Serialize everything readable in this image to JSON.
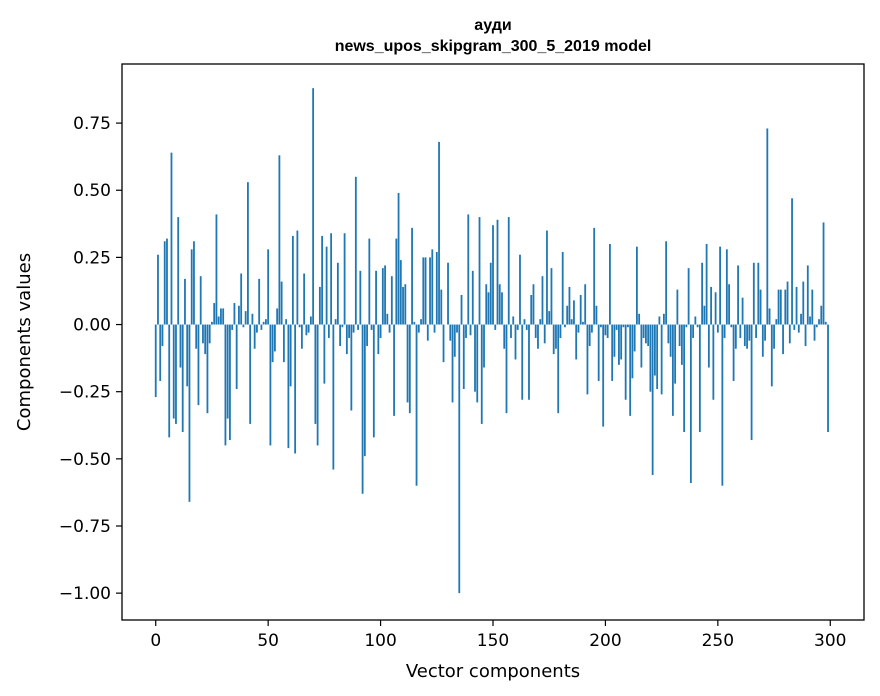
{
  "chart_data": {
    "type": "bar",
    "title": "ауди",
    "subtitle": "news_upos_skipgram_300_5_2019 model",
    "xlabel": "Vector components",
    "ylabel": "Components values",
    "xlim": [
      -15,
      315
    ],
    "ylim": [
      -1.1,
      0.97
    ],
    "xticks": [
      0,
      50,
      100,
      150,
      200,
      250,
      300
    ],
    "xtick_labels": [
      "0",
      "50",
      "100",
      "150",
      "200",
      "250",
      "300"
    ],
    "yticks": [
      -1.0,
      -0.75,
      -0.5,
      -0.25,
      0.0,
      0.25,
      0.5,
      0.75
    ],
    "ytick_labels": [
      "−1.00",
      "−0.75",
      "−0.50",
      "−0.25",
      "0.00",
      "0.25",
      "0.50",
      "0.75"
    ],
    "grid": false,
    "color": "#1f77b4",
    "x_start": 0,
    "values": [
      -0.27,
      0.26,
      -0.21,
      -0.08,
      0.31,
      0.32,
      -0.42,
      0.64,
      -0.35,
      -0.37,
      0.4,
      -0.16,
      -0.4,
      0.17,
      -0.23,
      -0.66,
      0.28,
      0.31,
      -0.09,
      -0.3,
      0.18,
      -0.07,
      -0.11,
      -0.33,
      -0.07,
      0.01,
      0.08,
      0.41,
      0.03,
      0.06,
      0.06,
      -0.45,
      -0.35,
      -0.43,
      -0.02,
      0.08,
      -0.24,
      0.07,
      0.19,
      -0.01,
      0.05,
      0.53,
      -0.37,
      0.04,
      -0.09,
      -0.03,
      0.17,
      -0.02,
      0.01,
      0.02,
      0.28,
      -0.45,
      -0.14,
      -0.1,
      0.06,
      0.63,
      0.16,
      -0.14,
      0.02,
      -0.46,
      -0.23,
      0.33,
      -0.48,
      0.35,
      -0.01,
      -0.09,
      0.19,
      -0.04,
      -0.03,
      0.03,
      0.88,
      -0.37,
      -0.45,
      0.14,
      0.33,
      -0.22,
      0.29,
      -0.05,
      0.34,
      -0.54,
      0.02,
      0.23,
      -0.08,
      -0.01,
      0.34,
      -0.11,
      -0.05,
      -0.32,
      -0.03,
      0.55,
      -0.02,
      0.2,
      -0.63,
      -0.49,
      -0.08,
      0.32,
      -0.02,
      -0.42,
      0.2,
      -0.11,
      -0.05,
      0.21,
      0.22,
      0.04,
      -0.03,
      0.18,
      -0.34,
      0.32,
      0.49,
      0.24,
      0.14,
      0.15,
      -0.29,
      -0.33,
      0.36,
      0.01,
      -0.6,
      -0.03,
      0.02,
      0.25,
      0.25,
      -0.06,
      0.25,
      0.28,
      -0.03,
      0.27,
      0.68,
      0.13,
      -0.14,
      0.0,
      0.23,
      -0.06,
      -0.29,
      -0.12,
      -0.03,
      -1.0,
      0.11,
      -0.24,
      -0.05,
      0.41,
      -0.04,
      0.2,
      -0.25,
      -0.29,
      0.4,
      -0.37,
      -0.16,
      0.15,
      0.12,
      0.23,
      0.37,
      -0.02,
      0.39,
      0.15,
      0.12,
      -0.09,
      -0.33,
      0.4,
      -0.05,
      0.03,
      -0.13,
      -0.02,
      0.26,
      -0.28,
      0.02,
      -0.02,
      -0.28,
      0.11,
      0.15,
      -0.05,
      -0.09,
      0.02,
      0.18,
      -0.07,
      0.35,
      0.05,
      0.21,
      -0.11,
      -0.09,
      -0.33,
      -0.05,
      0.27,
      -0.01,
      0.07,
      0.14,
      0.02,
      0.09,
      -0.13,
      -0.03,
      0.11,
      0.01,
      0.15,
      -0.26,
      -0.08,
      -0.03,
      0.36,
      0.07,
      -0.21,
      -0.01,
      -0.38,
      -0.04,
      -0.05,
      0.3,
      -0.21,
      -0.12,
      -0.02,
      -0.15,
      -0.13,
      -0.01,
      -0.28,
      -0.01,
      -0.34,
      -0.2,
      -0.1,
      0.29,
      0.04,
      -0.16,
      -0.05,
      -0.07,
      -0.08,
      -0.25,
      -0.56,
      -0.19,
      -0.24,
      0.03,
      -0.26,
      0.04,
      0.31,
      -0.07,
      -0.12,
      -0.34,
      -0.22,
      0.13,
      -0.08,
      -0.15,
      -0.4,
      -0.01,
      0.21,
      -0.59,
      -0.05,
      0.03,
      -0.01,
      -0.4,
      0.23,
      0.07,
      0.3,
      -0.16,
      0.14,
      -0.28,
      0.12,
      -0.03,
      0.29,
      -0.6,
      -0.05,
      0.28,
      0.15,
      -0.01,
      -0.21,
      -0.09,
      0.22,
      -0.05,
      0.1,
      -0.08,
      -0.09,
      -0.06,
      -0.43,
      0.23,
      -0.05,
      0.23,
      0.13,
      -0.12,
      -0.06,
      0.73,
      0.06,
      -0.23,
      -0.09,
      0.02,
      0.13,
      0.13,
      -0.11,
      0.13,
      0.16,
      -0.07,
      0.47,
      -0.02,
      0.14,
      -0.03,
      0.04,
      0.16,
      -0.08,
      0.22,
      0.03,
      0.13,
      -0.06,
      -0.01,
      0.02,
      0.07,
      0.38,
      0.01,
      -0.4
    ]
  }
}
